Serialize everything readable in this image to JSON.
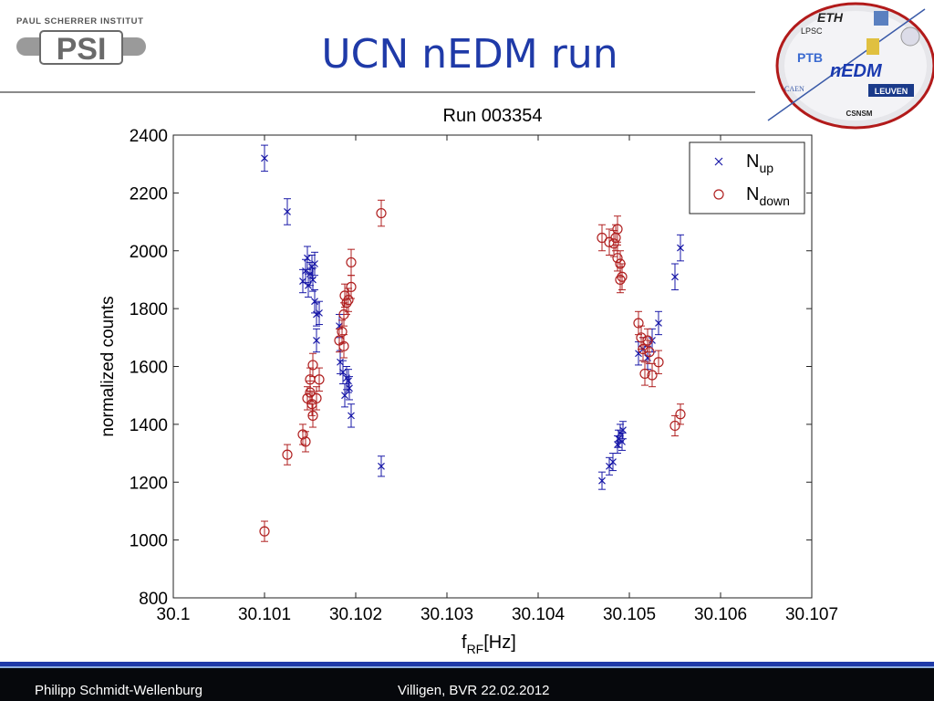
{
  "header": {
    "institute": "PAUL SCHERRER INSTITUT",
    "logo_text": "PSI",
    "title": "UCN nEDM run",
    "collab_labels": [
      "ETH",
      "LPSC",
      "PTB",
      "nEDM",
      "LEUVEN",
      "CSNSM",
      "CAEN"
    ]
  },
  "footer": {
    "author": "Philipp Schmidt-Wellenburg",
    "venue_date": "Villigen, BVR 22.02.2012"
  },
  "colors": {
    "title": "#1f3aa8",
    "up": "#1a1aa8",
    "down": "#b02020",
    "footer_bg": "#06080c"
  },
  "chart_data": {
    "type": "scatter",
    "title": "Run 003354",
    "xlabel_main": "f",
    "xlabel_sub": "RF",
    "xlabel_unit": "[Hz]",
    "ylabel": "normalized counts",
    "xlim": [
      30.1,
      30.107
    ],
    "ylim": [
      800,
      2400
    ],
    "xticks": [
      "30.1",
      "30.101",
      "30.102",
      "30.103",
      "30.104",
      "30.105",
      "30.106",
      "30.107"
    ],
    "yticks": [
      "800",
      "1000",
      "1200",
      "1400",
      "1600",
      "1800",
      "2000",
      "2200",
      "2400"
    ],
    "legend_position": "top-right",
    "series": [
      {
        "name": "N",
        "name_sub": "up",
        "marker": "x",
        "points": [
          [
            30.101,
            2320,
            45
          ],
          [
            30.10125,
            2135,
            45
          ],
          [
            30.10142,
            1895,
            40
          ],
          [
            30.10145,
            1930,
            40
          ],
          [
            30.10147,
            1975,
            40
          ],
          [
            30.10148,
            1880,
            40
          ],
          [
            30.1015,
            1920,
            40
          ],
          [
            30.10152,
            1945,
            40
          ],
          [
            30.10153,
            1900,
            40
          ],
          [
            30.10155,
            1955,
            40
          ],
          [
            30.10155,
            1825,
            40
          ],
          [
            30.10157,
            1780,
            40
          ],
          [
            30.1016,
            1785,
            40
          ],
          [
            30.10157,
            1690,
            40
          ],
          [
            30.10182,
            1740,
            40
          ],
          [
            30.10183,
            1615,
            40
          ],
          [
            30.10186,
            1580,
            40
          ],
          [
            30.10188,
            1500,
            40
          ],
          [
            30.1019,
            1560,
            40
          ],
          [
            30.10192,
            1550,
            40
          ],
          [
            30.10193,
            1525,
            40
          ],
          [
            30.10195,
            1430,
            40
          ],
          [
            30.10228,
            1255,
            35
          ],
          [
            30.1047,
            1205,
            30
          ],
          [
            30.10478,
            1255,
            30
          ],
          [
            30.10482,
            1270,
            30
          ],
          [
            30.10487,
            1330,
            30
          ],
          [
            30.10488,
            1350,
            30
          ],
          [
            30.1049,
            1370,
            30
          ],
          [
            30.10492,
            1340,
            30
          ],
          [
            30.10493,
            1380,
            30
          ],
          [
            30.1051,
            1645,
            40
          ],
          [
            30.10515,
            1660,
            40
          ],
          [
            30.1052,
            1630,
            40
          ],
          [
            30.10525,
            1690,
            40
          ],
          [
            30.10532,
            1750,
            40
          ],
          [
            30.1055,
            1910,
            45
          ],
          [
            30.10556,
            2010,
            45
          ]
        ]
      },
      {
        "name": "N",
        "name_sub": "down",
        "marker": "o",
        "points": [
          [
            30.101,
            1030,
            35
          ],
          [
            30.10125,
            1295,
            35
          ],
          [
            30.10142,
            1365,
            35
          ],
          [
            30.10145,
            1340,
            35
          ],
          [
            30.10147,
            1490,
            40
          ],
          [
            30.1015,
            1510,
            40
          ],
          [
            30.1015,
            1555,
            40
          ],
          [
            30.10152,
            1470,
            40
          ],
          [
            30.10153,
            1430,
            40
          ],
          [
            30.10153,
            1605,
            40
          ],
          [
            30.10157,
            1490,
            40
          ],
          [
            30.1016,
            1555,
            40
          ],
          [
            30.10182,
            1690,
            40
          ],
          [
            30.10185,
            1720,
            40
          ],
          [
            30.10187,
            1670,
            40
          ],
          [
            30.10187,
            1780,
            40
          ],
          [
            30.10188,
            1845,
            40
          ],
          [
            30.1019,
            1820,
            40
          ],
          [
            30.10192,
            1830,
            40
          ],
          [
            30.10195,
            1875,
            40
          ],
          [
            30.10195,
            1960,
            45
          ],
          [
            30.10228,
            2130,
            45
          ],
          [
            30.1047,
            2045,
            45
          ],
          [
            30.10478,
            2030,
            45
          ],
          [
            30.10483,
            2025,
            45
          ],
          [
            30.10485,
            2045,
            45
          ],
          [
            30.10487,
            2075,
            45
          ],
          [
            30.10487,
            1975,
            45
          ],
          [
            30.1049,
            1955,
            45
          ],
          [
            30.1049,
            1900,
            45
          ],
          [
            30.10492,
            1910,
            45
          ],
          [
            30.1051,
            1750,
            40
          ],
          [
            30.10513,
            1700,
            40
          ],
          [
            30.10515,
            1660,
            40
          ],
          [
            30.10517,
            1575,
            40
          ],
          [
            30.1052,
            1690,
            40
          ],
          [
            30.10522,
            1650,
            40
          ],
          [
            30.10525,
            1570,
            40
          ],
          [
            30.10532,
            1615,
            40
          ],
          [
            30.1055,
            1395,
            35
          ],
          [
            30.10556,
            1435,
            35
          ]
        ]
      }
    ]
  }
}
